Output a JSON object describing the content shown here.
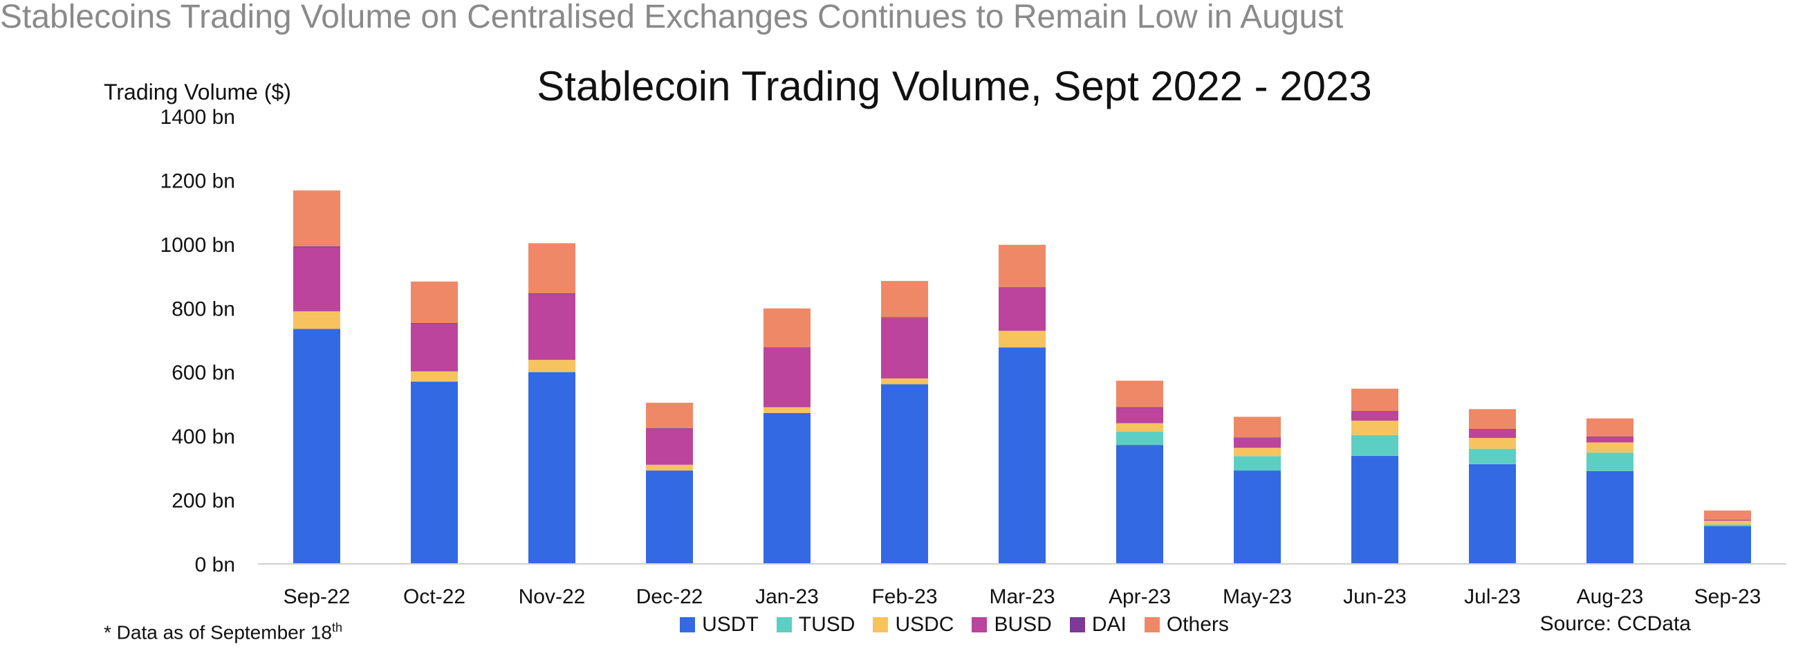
{
  "headline": "Stablecoins Trading Volume on Centralised Exchanges Continues to Remain Low in August",
  "footnote_text": "* Data as of September 18",
  "footnote_sup": "th",
  "source": "Source: CCData",
  "colors": {
    "USDT": "#3369e3",
    "TUSD": "#5ccfc2",
    "USDC": "#f7c35e",
    "BUSD": "#bc449c",
    "DAI": "#7b3a96",
    "Others": "#ef8866"
  },
  "chart_data": {
    "type": "bar",
    "stacked": true,
    "title": "Stablecoin Trading Volume, Sept 2022 - 2023",
    "ylabel": "Trading Volume ($)",
    "xlabel": "",
    "ylim": [
      0,
      1400
    ],
    "yticks": [
      "0 bn",
      "200 bn",
      "400 bn",
      "600 bn",
      "800 bn",
      "1000 bn",
      "1200 bn",
      "1400 bn"
    ],
    "ytick_values": [
      0,
      200,
      400,
      600,
      800,
      1000,
      1200,
      1400
    ],
    "grid": false,
    "legend_position": "bottom",
    "categories": [
      "Sep-22",
      "Oct-22",
      "Nov-22",
      "Dec-22",
      "Jan-23",
      "Feb-23",
      "Mar-23",
      "Apr-23",
      "May-23",
      "Jun-23",
      "Jul-23",
      "Aug-23",
      "Sep-23"
    ],
    "series": [
      {
        "name": "USDT",
        "values": [
          735,
          570,
          600,
          292,
          472,
          562,
          677,
          372,
          292,
          338,
          312,
          290,
          118
        ]
      },
      {
        "name": "TUSD",
        "values": [
          0,
          0,
          0,
          0,
          0,
          0,
          0,
          42,
          45,
          65,
          48,
          58,
          5
        ]
      },
      {
        "name": "USDC",
        "values": [
          55,
          32,
          38,
          18,
          18,
          18,
          52,
          26,
          26,
          45,
          34,
          32,
          12
        ]
      },
      {
        "name": "BUSD",
        "values": [
          200,
          148,
          205,
          112,
          185,
          190,
          135,
          48,
          30,
          28,
          26,
          16,
          3
        ]
      },
      {
        "name": "DAI",
        "values": [
          3,
          3,
          3,
          2,
          2,
          2,
          2,
          2,
          2,
          2,
          2,
          2,
          1
        ]
      },
      {
        "name": "Others",
        "values": [
          175,
          130,
          157,
          80,
          122,
          113,
          132,
          83,
          65,
          70,
          62,
          57,
          28
        ]
      }
    ]
  }
}
